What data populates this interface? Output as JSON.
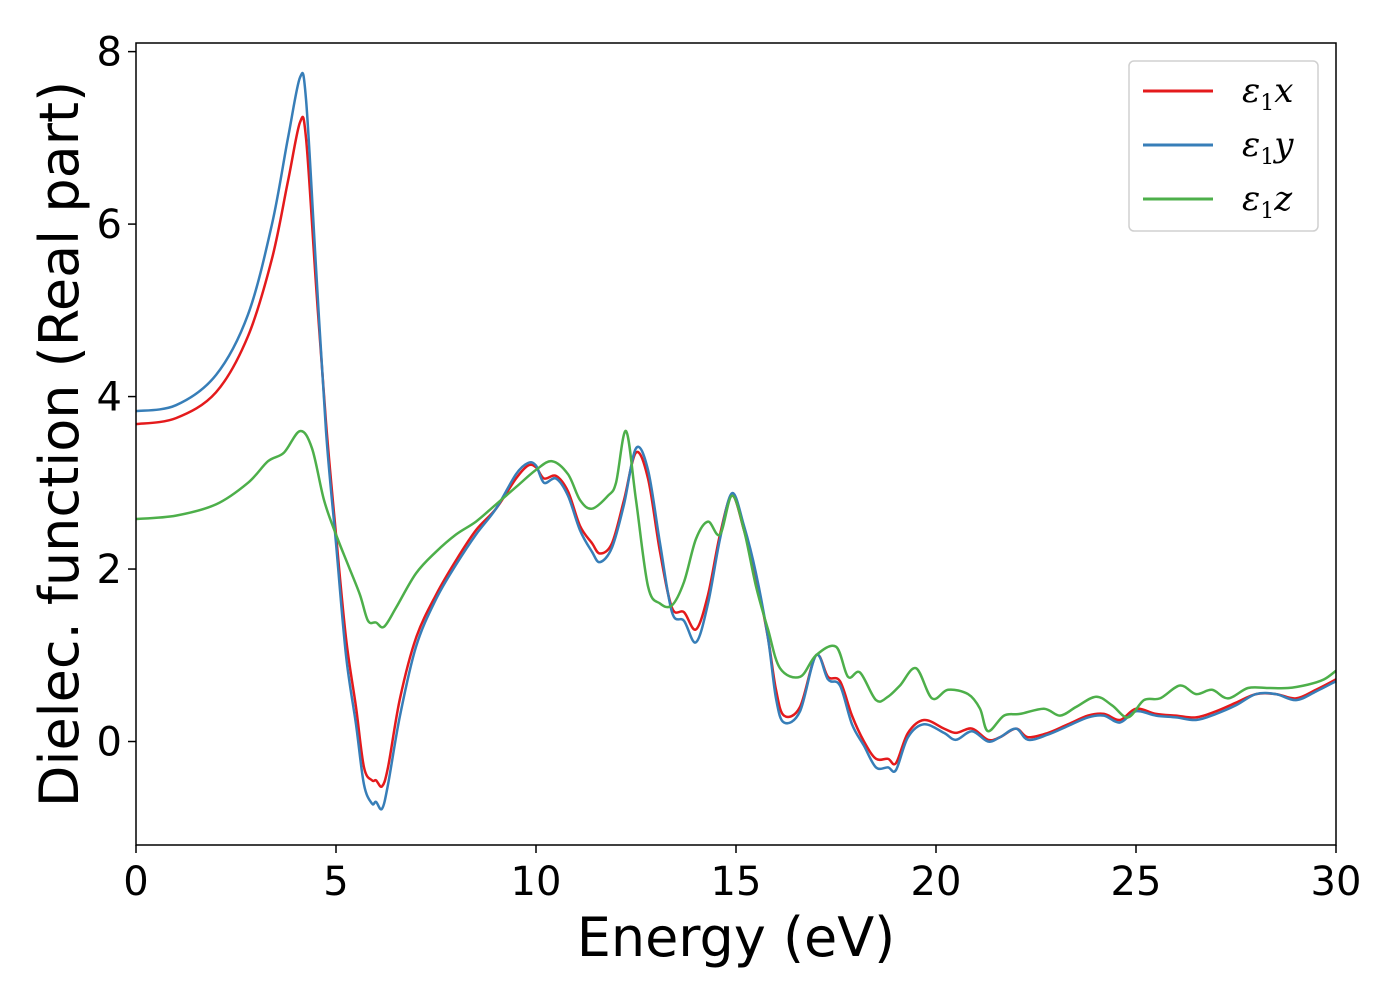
{
  "chart_data": {
    "type": "line",
    "title": "",
    "xlabel": "Energy (eV)",
    "ylabel": "Dielec. function (Real part)",
    "xlim": [
      0,
      30
    ],
    "ylim": [
      -1.2,
      8.1
    ],
    "xticks": [
      0,
      5,
      10,
      15,
      20,
      25,
      30
    ],
    "yticks": [
      0,
      2,
      4,
      6,
      8
    ],
    "grid": false,
    "legend_position": "top-right",
    "series": [
      {
        "name": "ε1x",
        "label_base": "ε",
        "label_sub": "1",
        "label_suffix": "x",
        "color": "#e41a1c",
        "points": [
          [
            0,
            3.68
          ],
          [
            1,
            3.75
          ],
          [
            2,
            4.05
          ],
          [
            2.8,
            4.7
          ],
          [
            3.4,
            5.6
          ],
          [
            3.8,
            6.5
          ],
          [
            4.1,
            7.18
          ],
          [
            4.25,
            7.0
          ],
          [
            4.5,
            5.3
          ],
          [
            4.75,
            3.7
          ],
          [
            5.0,
            2.4
          ],
          [
            5.25,
            1.2
          ],
          [
            5.5,
            0.4
          ],
          [
            5.7,
            -0.3
          ],
          [
            5.9,
            -0.45
          ],
          [
            6.0,
            -0.45
          ],
          [
            6.15,
            -0.52
          ],
          [
            6.3,
            -0.3
          ],
          [
            6.6,
            0.5
          ],
          [
            7.0,
            1.2
          ],
          [
            7.5,
            1.7
          ],
          [
            8.0,
            2.1
          ],
          [
            8.5,
            2.45
          ],
          [
            9.0,
            2.7
          ],
          [
            9.5,
            3.05
          ],
          [
            9.8,
            3.2
          ],
          [
            10.0,
            3.18
          ],
          [
            10.2,
            3.05
          ],
          [
            10.5,
            3.08
          ],
          [
            10.8,
            2.9
          ],
          [
            11.1,
            2.5
          ],
          [
            11.4,
            2.3
          ],
          [
            11.6,
            2.18
          ],
          [
            11.9,
            2.3
          ],
          [
            12.2,
            2.8
          ],
          [
            12.5,
            3.35
          ],
          [
            12.8,
            3.05
          ],
          [
            13.1,
            2.2
          ],
          [
            13.4,
            1.55
          ],
          [
            13.7,
            1.5
          ],
          [
            14.0,
            1.3
          ],
          [
            14.3,
            1.7
          ],
          [
            14.6,
            2.4
          ],
          [
            14.9,
            2.85
          ],
          [
            15.2,
            2.45
          ],
          [
            15.5,
            1.9
          ],
          [
            15.8,
            1.2
          ],
          [
            16.0,
            0.6
          ],
          [
            16.2,
            0.3
          ],
          [
            16.6,
            0.4
          ],
          [
            17.0,
            1.0
          ],
          [
            17.3,
            0.75
          ],
          [
            17.6,
            0.7
          ],
          [
            17.9,
            0.3
          ],
          [
            18.2,
            0.0
          ],
          [
            18.5,
            -0.2
          ],
          [
            18.8,
            -0.2
          ],
          [
            19.0,
            -0.25
          ],
          [
            19.3,
            0.1
          ],
          [
            19.7,
            0.25
          ],
          [
            20.2,
            0.15
          ],
          [
            20.5,
            0.1
          ],
          [
            20.9,
            0.15
          ],
          [
            21.3,
            0.02
          ],
          [
            21.6,
            0.05
          ],
          [
            22.0,
            0.15
          ],
          [
            22.3,
            0.05
          ],
          [
            22.8,
            0.1
          ],
          [
            23.3,
            0.2
          ],
          [
            23.8,
            0.3
          ],
          [
            24.2,
            0.32
          ],
          [
            24.6,
            0.25
          ],
          [
            25.0,
            0.38
          ],
          [
            25.5,
            0.32
          ],
          [
            26.0,
            0.3
          ],
          [
            26.5,
            0.28
          ],
          [
            27.0,
            0.35
          ],
          [
            27.5,
            0.45
          ],
          [
            28.0,
            0.55
          ],
          [
            28.5,
            0.55
          ],
          [
            29.0,
            0.5
          ],
          [
            29.5,
            0.6
          ],
          [
            30.0,
            0.72
          ]
        ]
      },
      {
        "name": "ε1y",
        "label_base": "ε",
        "label_sub": "1",
        "label_suffix": "y",
        "color": "#377eb8",
        "points": [
          [
            0,
            3.83
          ],
          [
            1,
            3.9
          ],
          [
            2,
            4.25
          ],
          [
            2.8,
            4.95
          ],
          [
            3.4,
            6.0
          ],
          [
            3.8,
            7.0
          ],
          [
            4.1,
            7.7
          ],
          [
            4.25,
            7.45
          ],
          [
            4.5,
            5.5
          ],
          [
            4.75,
            3.6
          ],
          [
            5.0,
            2.3
          ],
          [
            5.25,
            1.0
          ],
          [
            5.5,
            0.2
          ],
          [
            5.7,
            -0.5
          ],
          [
            5.9,
            -0.72
          ],
          [
            6.0,
            -0.7
          ],
          [
            6.15,
            -0.78
          ],
          [
            6.3,
            -0.5
          ],
          [
            6.6,
            0.3
          ],
          [
            7.0,
            1.1
          ],
          [
            7.5,
            1.65
          ],
          [
            8.0,
            2.05
          ],
          [
            8.5,
            2.4
          ],
          [
            9.0,
            2.7
          ],
          [
            9.5,
            3.1
          ],
          [
            9.8,
            3.23
          ],
          [
            10.0,
            3.2
          ],
          [
            10.2,
            3.0
          ],
          [
            10.5,
            3.05
          ],
          [
            10.8,
            2.85
          ],
          [
            11.1,
            2.45
          ],
          [
            11.4,
            2.2
          ],
          [
            11.6,
            2.08
          ],
          [
            11.9,
            2.25
          ],
          [
            12.2,
            2.75
          ],
          [
            12.5,
            3.4
          ],
          [
            12.8,
            3.15
          ],
          [
            13.1,
            2.3
          ],
          [
            13.4,
            1.5
          ],
          [
            13.7,
            1.4
          ],
          [
            14.0,
            1.15
          ],
          [
            14.3,
            1.6
          ],
          [
            14.6,
            2.35
          ],
          [
            14.9,
            2.88
          ],
          [
            15.2,
            2.5
          ],
          [
            15.5,
            1.95
          ],
          [
            15.8,
            1.2
          ],
          [
            16.0,
            0.5
          ],
          [
            16.2,
            0.22
          ],
          [
            16.6,
            0.35
          ],
          [
            17.0,
            1.0
          ],
          [
            17.3,
            0.72
          ],
          [
            17.6,
            0.65
          ],
          [
            17.9,
            0.2
          ],
          [
            18.2,
            -0.05
          ],
          [
            18.5,
            -0.3
          ],
          [
            18.8,
            -0.3
          ],
          [
            19.0,
            -0.33
          ],
          [
            19.3,
            0.05
          ],
          [
            19.7,
            0.2
          ],
          [
            20.2,
            0.1
          ],
          [
            20.5,
            0.02
          ],
          [
            20.9,
            0.12
          ],
          [
            21.3,
            0.0
          ],
          [
            21.6,
            0.05
          ],
          [
            22.0,
            0.15
          ],
          [
            22.3,
            0.02
          ],
          [
            22.8,
            0.08
          ],
          [
            23.3,
            0.18
          ],
          [
            23.8,
            0.28
          ],
          [
            24.2,
            0.3
          ],
          [
            24.6,
            0.22
          ],
          [
            25.0,
            0.35
          ],
          [
            25.5,
            0.3
          ],
          [
            26.0,
            0.28
          ],
          [
            26.5,
            0.25
          ],
          [
            27.0,
            0.32
          ],
          [
            27.5,
            0.42
          ],
          [
            28.0,
            0.55
          ],
          [
            28.5,
            0.55
          ],
          [
            29.0,
            0.48
          ],
          [
            29.5,
            0.58
          ],
          [
            30.0,
            0.7
          ]
        ]
      },
      {
        "name": "ε1z",
        "label_base": "ε",
        "label_sub": "1",
        "label_suffix": "z",
        "color": "#4daf4a",
        "points": [
          [
            0,
            2.58
          ],
          [
            1,
            2.62
          ],
          [
            2,
            2.75
          ],
          [
            2.8,
            3.0
          ],
          [
            3.3,
            3.25
          ],
          [
            3.7,
            3.35
          ],
          [
            4.1,
            3.6
          ],
          [
            4.4,
            3.4
          ],
          [
            4.7,
            2.8
          ],
          [
            5.0,
            2.4
          ],
          [
            5.3,
            2.05
          ],
          [
            5.6,
            1.7
          ],
          [
            5.8,
            1.4
          ],
          [
            6.0,
            1.38
          ],
          [
            6.2,
            1.33
          ],
          [
            6.5,
            1.55
          ],
          [
            7.0,
            1.95
          ],
          [
            7.5,
            2.2
          ],
          [
            8.0,
            2.4
          ],
          [
            8.5,
            2.55
          ],
          [
            9.0,
            2.75
          ],
          [
            9.5,
            2.95
          ],
          [
            10.0,
            3.15
          ],
          [
            10.4,
            3.25
          ],
          [
            10.8,
            3.1
          ],
          [
            11.1,
            2.8
          ],
          [
            11.4,
            2.7
          ],
          [
            11.8,
            2.85
          ],
          [
            12.0,
            3.0
          ],
          [
            12.25,
            3.6
          ],
          [
            12.5,
            2.8
          ],
          [
            12.8,
            1.8
          ],
          [
            13.1,
            1.6
          ],
          [
            13.4,
            1.58
          ],
          [
            13.7,
            1.85
          ],
          [
            14.0,
            2.35
          ],
          [
            14.3,
            2.55
          ],
          [
            14.6,
            2.4
          ],
          [
            14.9,
            2.85
          ],
          [
            15.2,
            2.45
          ],
          [
            15.5,
            1.8
          ],
          [
            15.8,
            1.3
          ],
          [
            16.1,
            0.85
          ],
          [
            16.6,
            0.75
          ],
          [
            17.0,
            1.0
          ],
          [
            17.5,
            1.1
          ],
          [
            17.8,
            0.75
          ],
          [
            18.1,
            0.8
          ],
          [
            18.5,
            0.48
          ],
          [
            18.8,
            0.52
          ],
          [
            19.1,
            0.65
          ],
          [
            19.5,
            0.85
          ],
          [
            19.9,
            0.5
          ],
          [
            20.3,
            0.6
          ],
          [
            20.8,
            0.55
          ],
          [
            21.1,
            0.38
          ],
          [
            21.3,
            0.12
          ],
          [
            21.7,
            0.3
          ],
          [
            22.1,
            0.32
          ],
          [
            22.7,
            0.38
          ],
          [
            23.1,
            0.3
          ],
          [
            23.5,
            0.4
          ],
          [
            24.0,
            0.52
          ],
          [
            24.4,
            0.42
          ],
          [
            24.8,
            0.28
          ],
          [
            25.2,
            0.48
          ],
          [
            25.6,
            0.5
          ],
          [
            26.1,
            0.65
          ],
          [
            26.5,
            0.55
          ],
          [
            26.9,
            0.6
          ],
          [
            27.3,
            0.5
          ],
          [
            27.8,
            0.62
          ],
          [
            28.3,
            0.62
          ],
          [
            28.8,
            0.62
          ],
          [
            29.3,
            0.66
          ],
          [
            29.7,
            0.72
          ],
          [
            30.0,
            0.82
          ]
        ]
      }
    ]
  }
}
